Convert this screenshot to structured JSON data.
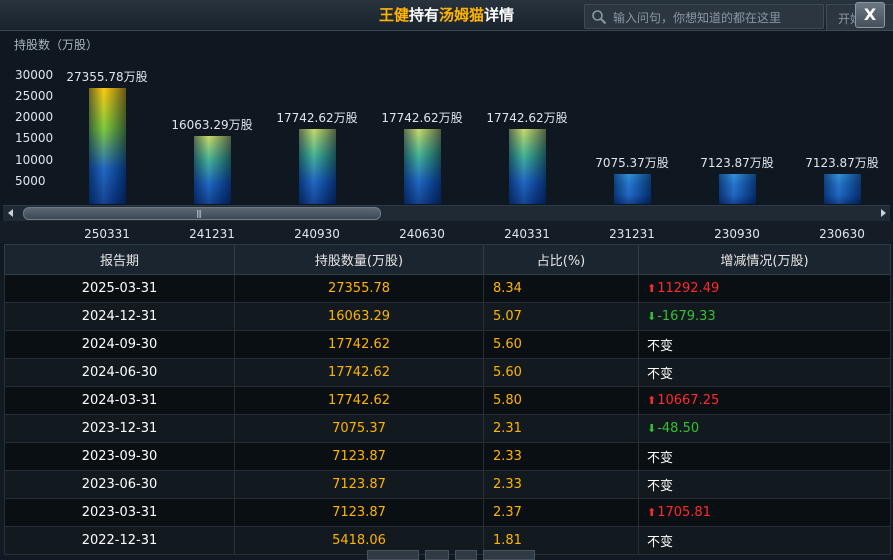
{
  "header": {
    "title_parts": [
      "王健",
      "持有",
      "汤姆猫",
      "详情"
    ],
    "search_placeholder": "输入问句，你想知道的都在这里",
    "open_label": "开始",
    "close_label": "X"
  },
  "chart_data": {
    "type": "bar",
    "ylabel": "持股数（万股）",
    "yticks": [
      "30000",
      "25000",
      "20000",
      "15000",
      "10000",
      "5000"
    ],
    "ylim": [
      0,
      30000
    ],
    "categories": [
      "250331",
      "241231",
      "240930",
      "240630",
      "240331",
      "231231",
      "230930",
      "230630"
    ],
    "values": [
      27355.78,
      16063.29,
      17742.62,
      17742.62,
      17742.62,
      7075.37,
      7123.87,
      7123.87
    ],
    "labels": [
      "27355.78万股",
      "16063.29万股",
      "17742.62万股",
      "17742.62万股",
      "17742.62万股",
      "7075.37万股",
      "7123.87万股",
      "7123.87万股"
    ]
  },
  "table": {
    "headers": [
      "报告期",
      "持股数量(万股)",
      "占比(%)",
      "增减情况(万股)"
    ],
    "rows": [
      {
        "date": "2025-03-31",
        "shares": "27355.78",
        "pct": "8.34",
        "change": "11292.49",
        "dir": "up"
      },
      {
        "date": "2024-12-31",
        "shares": "16063.29",
        "pct": "5.07",
        "change": "-1679.33",
        "dir": "down"
      },
      {
        "date": "2024-09-30",
        "shares": "17742.62",
        "pct": "5.60",
        "change": "不变",
        "dir": "flat"
      },
      {
        "date": "2024-06-30",
        "shares": "17742.62",
        "pct": "5.60",
        "change": "不变",
        "dir": "flat"
      },
      {
        "date": "2024-03-31",
        "shares": "17742.62",
        "pct": "5.80",
        "change": "10667.25",
        "dir": "up"
      },
      {
        "date": "2023-12-31",
        "shares": "7075.37",
        "pct": "2.31",
        "change": "-48.50",
        "dir": "down"
      },
      {
        "date": "2023-09-30",
        "shares": "7123.87",
        "pct": "2.33",
        "change": "不变",
        "dir": "flat"
      },
      {
        "date": "2023-06-30",
        "shares": "7123.87",
        "pct": "2.33",
        "change": "不变",
        "dir": "flat"
      },
      {
        "date": "2023-03-31",
        "shares": "7123.87",
        "pct": "2.37",
        "change": "1705.81",
        "dir": "up"
      },
      {
        "date": "2022-12-31",
        "shares": "5418.06",
        "pct": "1.81",
        "change": "不变",
        "dir": "flat"
      }
    ]
  },
  "colors": {
    "accent": "#ffb400",
    "up": "#ff2b2b",
    "down": "#35c035"
  }
}
